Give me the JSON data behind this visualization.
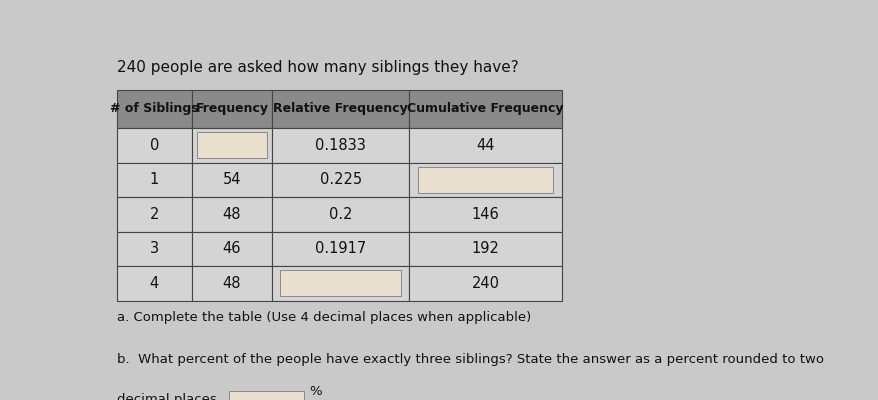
{
  "title": "240 people are asked how many siblings they have?",
  "columns": [
    "# of Siblings",
    "Frequency",
    "Relative Frequency",
    "Cumulative Frequency"
  ],
  "row_data": [
    [
      "0",
      "",
      "0.1833",
      "44",
      false,
      true,
      false,
      false
    ],
    [
      "1",
      "54",
      "0.225",
      "",
      false,
      false,
      false,
      true
    ],
    [
      "2",
      "48",
      "0.2",
      "146",
      false,
      false,
      false,
      false
    ],
    [
      "3",
      "46",
      "0.1917",
      "192",
      false,
      false,
      false,
      false
    ],
    [
      "4",
      "48",
      "",
      "240",
      false,
      false,
      true,
      false
    ]
  ],
  "note_a": "a. Complete the table (Use 4 decimal places when applicable)",
  "note_b": "b.  What percent of the people have exactly three siblings? State the answer as a percent rounded to two",
  "note_b2": "decimal places.",
  "percent_sign": "%",
  "bg_color": "#c9c9c9",
  "header_bg": "#8a8a8a",
  "cell_bg_light": "#d4d4d4",
  "blank_box_color": "#e8e0cc",
  "border_color": "#444444",
  "text_color": "#111111"
}
